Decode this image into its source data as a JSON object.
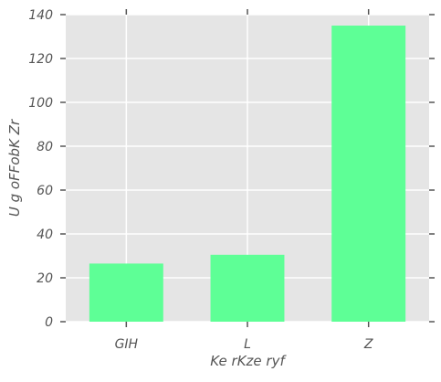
{
  "chart_data": {
    "type": "bar",
    "categories": [
      "GIH",
      "L",
      "Z"
    ],
    "values": [
      26.5,
      30.5,
      135
    ],
    "title": "",
    "xlabel": "Ke rKze ryf",
    "ylabel": "U  g oFFobK Zr",
    "ylim": [
      0,
      140
    ],
    "yticks": [
      "0",
      "20",
      "40",
      "60",
      "80",
      "100",
      "120",
      "140"
    ],
    "grid": true,
    "bar_color": "#5eff96",
    "background_color": "#e5e5e5",
    "grid_color": "#ffffff",
    "tick_color": "#555555"
  }
}
